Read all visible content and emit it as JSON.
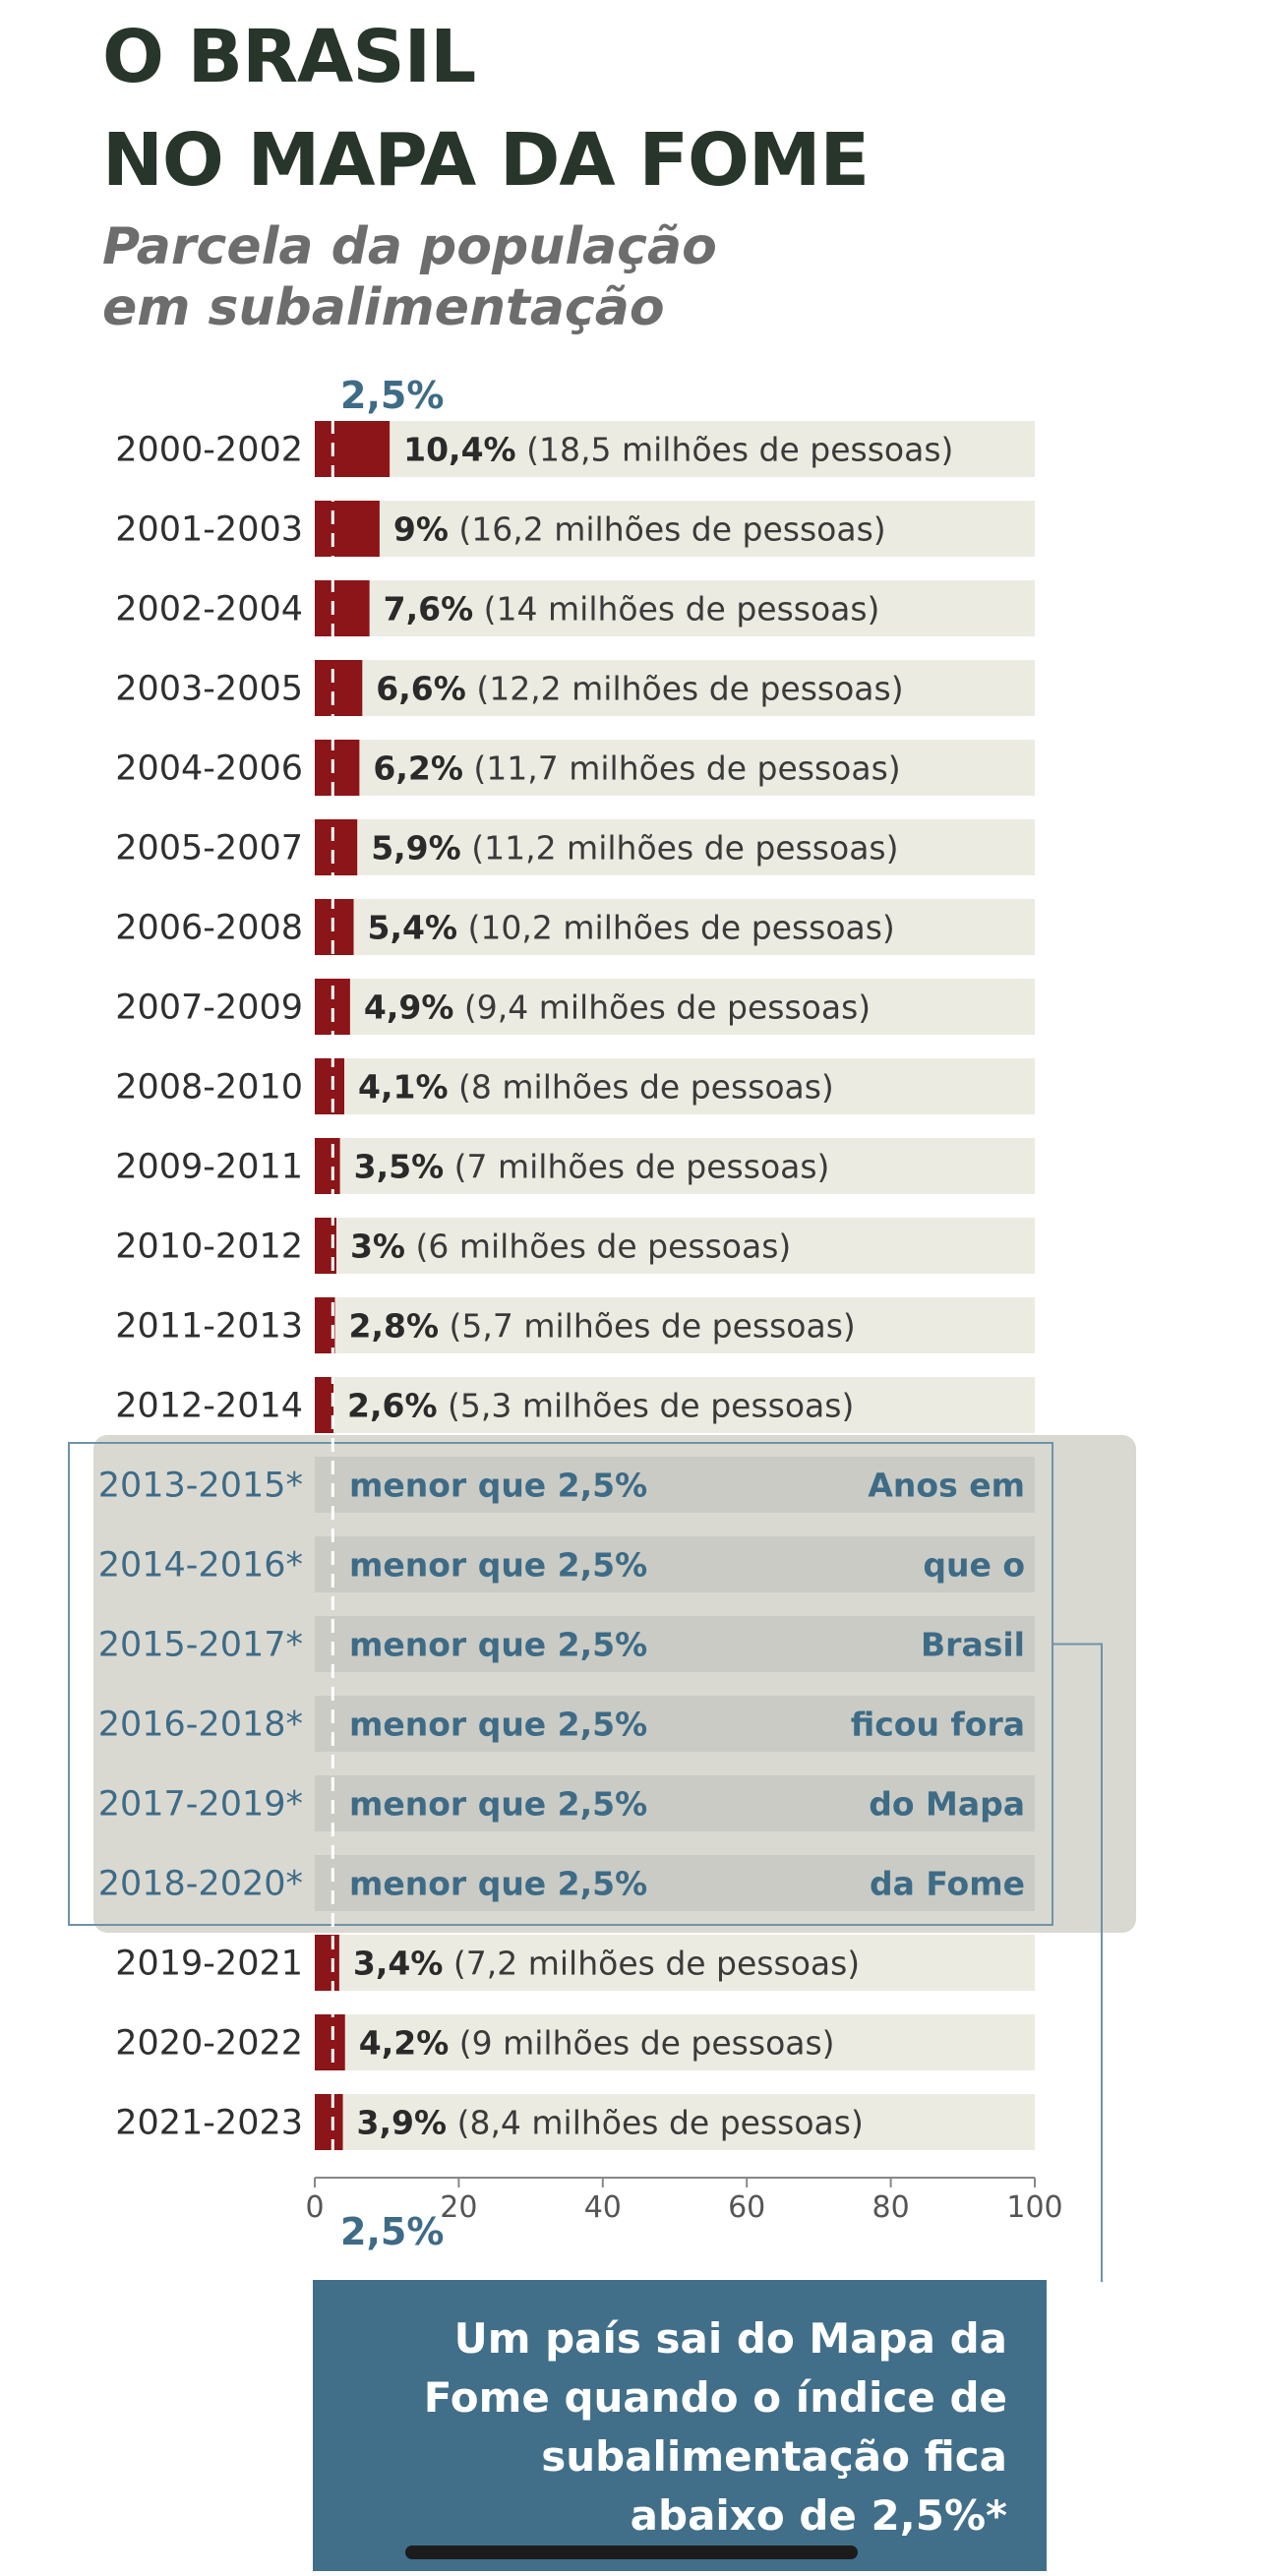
{
  "title": [
    "O BRASIL",
    "NO MAPA DA FOME"
  ],
  "subtitle": [
    "Parcela da população",
    "em subalimentação"
  ],
  "chart_data": {
    "type": "bar",
    "title": "O BRASIL NO MAPA DA FOME",
    "subtitle": "Parcela da população em subalimentação",
    "xlim": [
      0,
      100
    ],
    "xticks": [
      "0",
      "20",
      "40",
      "60",
      "80",
      "100"
    ],
    "threshold": {
      "value": 2.5,
      "label": "2,5%"
    },
    "bar_color": "#8b1518",
    "track_color": "#ecebe1",
    "highlight_color": "#3e6b86",
    "categories": [
      "2000-2002",
      "2001-2003",
      "2002-2004",
      "2003-2005",
      "2004-2006",
      "2005-2007",
      "2006-2008",
      "2007-2009",
      "2008-2010",
      "2009-2011",
      "2010-2012",
      "2011-2013",
      "2012-2014",
      "2013-2015*",
      "2014-2016*",
      "2015-2017*",
      "2016-2018*",
      "2017-2019*",
      "2018-2020*",
      "2019-2021",
      "2020-2022",
      "2021-2023"
    ],
    "values": [
      10.4,
      9,
      7.6,
      6.6,
      6.2,
      5.9,
      5.4,
      4.9,
      4.1,
      3.5,
      3,
      2.8,
      2.6,
      null,
      null,
      null,
      null,
      null,
      null,
      3.4,
      4.2,
      3.9
    ],
    "value_labels": [
      "10,4%",
      "9%",
      "7,6%",
      "6,6%",
      "6,2%",
      "5,9%",
      "5,4%",
      "4,9%",
      "4,1%",
      "3,5%",
      "3%",
      "2,8%",
      "2,6%",
      "menor que 2,5%",
      "menor que 2,5%",
      "menor que 2,5%",
      "menor que 2,5%",
      "menor que 2,5%",
      "menor que 2,5%",
      "3,4%",
      "4,2%",
      "3,9%"
    ],
    "people_labels": [
      "(18,5 milhões de pessoas)",
      "(16,2 milhões de pessoas)",
      "(14 milhões de pessoas)",
      "(12,2 milhões de pessoas)",
      "(11,7 milhões de pessoas)",
      "(11,2 milhões de pessoas)",
      "(10,2 milhões de pessoas)",
      "(9,4 milhões de pessoas)",
      "(8 milhões de pessoas)",
      "(7 milhões de pessoas)",
      "(6 milhões de pessoas)",
      "(5,7 milhões de pessoas)",
      "(5,3 milhões de pessoas)",
      "",
      "",
      "",
      "",
      "",
      "",
      "(7,2 milhões de pessoas)",
      "(9 milhões de pessoas)",
      "(8,4 milhões de pessoas)"
    ],
    "highlight_text": [
      "Anos em",
      "que o",
      "Brasil",
      "ficou fora",
      "do Mapa",
      "da Fome"
    ]
  },
  "note": [
    "Um país sai do Mapa da",
    "Fome quando o índice de",
    "subalimentação fica",
    "abaixo de 2,5%*"
  ]
}
